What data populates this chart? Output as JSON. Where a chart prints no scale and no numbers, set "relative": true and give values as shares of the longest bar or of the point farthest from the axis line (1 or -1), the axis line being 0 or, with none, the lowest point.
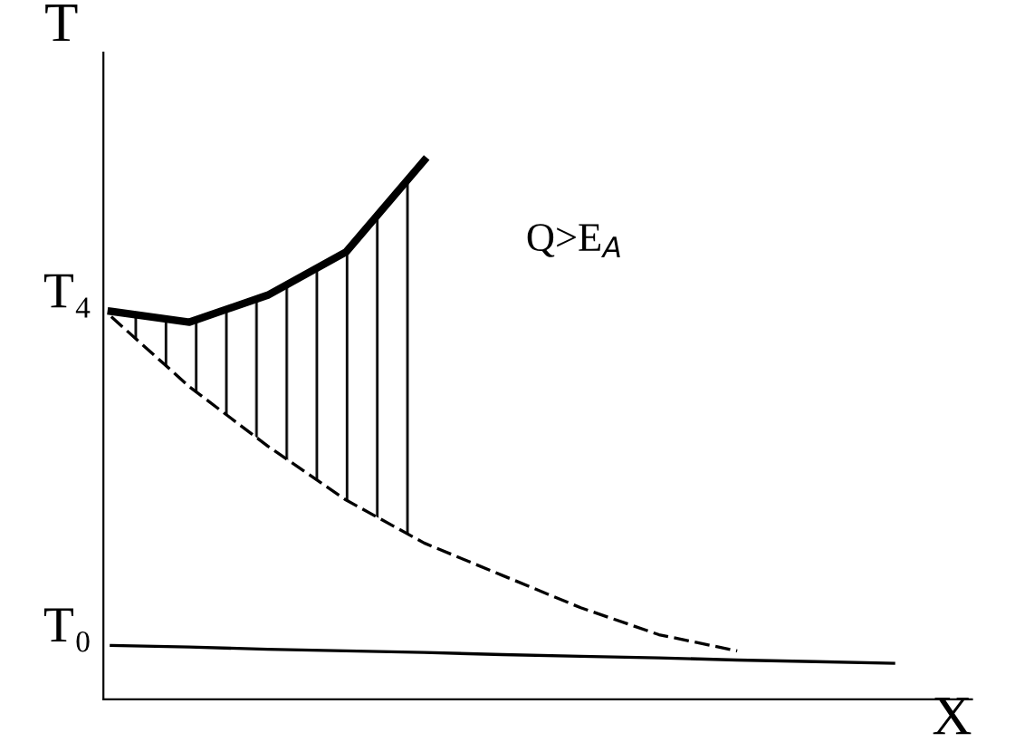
{
  "chart_data": {
    "type": "line",
    "relative": true,
    "xlabel": "X",
    "ylabel": "T",
    "categories": [
      null,
      null,
      null,
      null,
      null,
      null,
      null,
      null,
      null,
      null,
      null
    ],
    "series": [
      {
        "color": "#000000",
        "line_style": "solid",
        "values": [
          0.72,
          0.7,
          0.75,
          0.83,
          1.0,
          null,
          null,
          null,
          null,
          null,
          null
        ]
      },
      {
        "color": "#000000",
        "line_style": "dashed",
        "values": [
          0.71,
          0.58,
          0.47,
          0.37,
          0.29,
          0.23,
          0.17,
          0.12,
          0.09,
          null,
          null
        ]
      },
      {
        "color": "#000000",
        "line_style": "solid",
        "values": [
          0.1,
          0.097,
          0.093,
          0.09,
          0.087,
          0.083,
          0.08,
          0.077,
          0.073,
          0.07,
          0.067
        ]
      }
    ],
    "annotations": [
      "T₄",
      "T₀",
      "Q>E$_{A}$"
    ],
    "marker": "none",
    "grid": false,
    "legend": false
  }
}
